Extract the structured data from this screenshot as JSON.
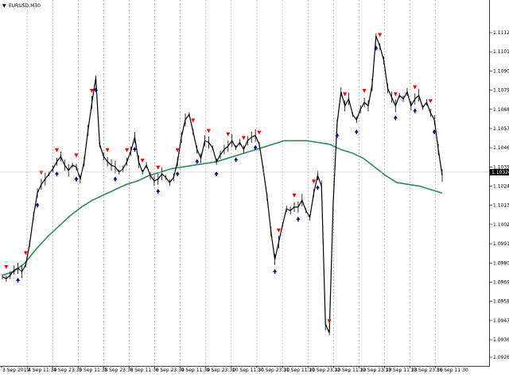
{
  "window": {
    "symbol_title": "EURUSD,M30",
    "menu_glyph": "▼"
  },
  "colors": {
    "background": "#ffffff",
    "candle": "#000000",
    "grid": "#9a9a9a",
    "ma_line": "#2e8b57",
    "up_arrow": "#00008b",
    "down_arrow": "#ff0000",
    "price_line": "#c0c0c0",
    "price_label_bg": "#000000",
    "price_label_fg": "#ffffff"
  },
  "chart_data": {
    "type": "line",
    "title": "EURUSD,M30",
    "xlabel": "",
    "ylabel": "",
    "grid": true,
    "ylim": [
      1.0926,
      1.112
    ],
    "y_ticks": [
      "1.11120",
      "1.11010",
      "1.10900",
      "1.10790",
      "1.10680",
      "1.10570",
      "1.10460",
      "1.10350",
      "1.10240",
      "1.10130",
      "1.10020",
      "1.09910",
      "1.09800",
      "1.09690",
      "1.09580",
      "1.09470",
      "1.09360",
      "1.09260"
    ],
    "current_price": "1.10320",
    "x_ticks": [
      "3 Sep 2019",
      "4 Sep 11:30",
      "4 Sep 23:30",
      "5 Sep 11:30",
      "5 Sep 23:30",
      "6 Sep 11:30",
      "6 Sep 23:30",
      "9 Sep 11:30",
      "9 Sep 23:30",
      "10 Sep 11:30",
      "10 Sep 23:30",
      "11 Sep 11:30",
      "11 Sep 23:30",
      "12 Sep 11:30",
      "12 Sep 23:30",
      "13 Sep 11:30",
      "13 Sep 23:30",
      "16 Sep 11:30"
    ],
    "series": [
      {
        "kind": "price",
        "values": [
          1.0972,
          1.0971,
          1.0973,
          1.0976,
          1.0977,
          1.0975,
          1.0979,
          1.0991,
          1.1007,
          1.102,
          1.1025,
          1.1028,
          1.1031,
          1.1034,
          1.1038,
          1.1041,
          1.1036,
          1.1033,
          1.1036,
          1.1035,
          1.1028,
          1.1038,
          1.1056,
          1.1072,
          1.1086,
          1.1048,
          1.1041,
          1.1038,
          1.1036,
          1.1035,
          1.1032,
          1.1034,
          1.1038,
          1.1044,
          1.1052,
          1.1038,
          1.1032,
          1.1036,
          1.103,
          1.1027,
          1.1028,
          1.1031,
          1.1029,
          1.1026,
          1.1029,
          1.1038,
          1.1052,
          1.1062,
          1.1065,
          1.1055,
          1.1045,
          1.104,
          1.105,
          1.1049,
          1.1046,
          1.1038,
          1.1042,
          1.1045,
          1.1047,
          1.105,
          1.1046,
          1.1049,
          1.1045,
          1.105,
          1.1052,
          1.1053,
          1.1048,
          1.1034,
          1.1018,
          1.0998,
          1.0982,
          1.0992,
          1.1002,
          1.1011,
          1.101,
          1.1012,
          1.1012,
          1.1016,
          1.101,
          1.1006,
          1.102,
          1.103,
          1.1024,
          1.0945,
          1.094,
          1.1015,
          1.106,
          1.1078,
          1.107,
          1.1074,
          1.1065,
          1.1062,
          1.1068,
          1.1072,
          1.107,
          1.1082,
          1.111,
          1.1104,
          1.1096,
          1.108,
          1.1075,
          1.107,
          1.1076,
          1.1074,
          1.1078,
          1.107,
          1.1074,
          1.1076,
          1.1069,
          1.1072,
          1.1066,
          1.1062,
          1.1045,
          1.103
        ]
      },
      {
        "kind": "moving-average",
        "values": [
          1.0973,
          1.0975,
          1.098,
          1.0988,
          1.0995,
          1.1001,
          1.1007,
          1.1012,
          1.1016,
          1.1019,
          1.1022,
          1.1025,
          1.1027,
          1.103,
          1.1032,
          1.1034,
          1.1035,
          1.1036,
          1.1037,
          1.1038,
          1.104,
          1.1042,
          1.1044,
          1.1046,
          1.1048,
          1.105,
          1.105,
          1.105,
          1.1049,
          1.1048,
          1.1045,
          1.1043,
          1.104,
          1.1035,
          1.103,
          1.1026,
          1.1025,
          1.1024,
          1.1022,
          1.102
        ]
      }
    ],
    "markers": {
      "up_arrow_count": 22,
      "down_arrow_count": 26
    }
  }
}
